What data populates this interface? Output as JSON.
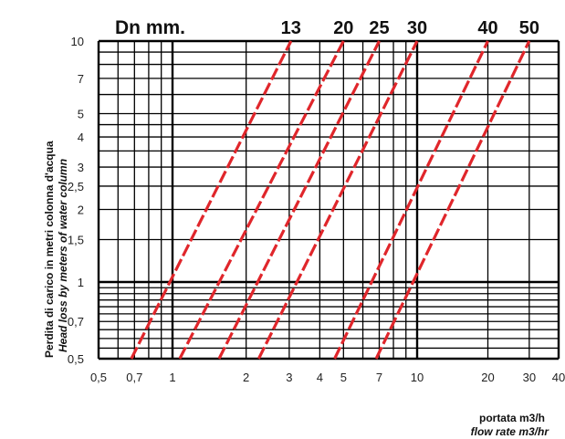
{
  "chart_data": {
    "type": "line",
    "x_scale": "log",
    "y_scale": "log",
    "xlim": [
      0.5,
      40
    ],
    "ylim": [
      0.5,
      10
    ],
    "grid": true,
    "x_ticks": [
      "0,5",
      "0,7",
      "1",
      "2",
      "3",
      "4",
      "5",
      "7",
      "10",
      "20",
      "30",
      "40"
    ],
    "x_tick_values": [
      0.5,
      0.7,
      1,
      2,
      3,
      4,
      5,
      7,
      10,
      20,
      30,
      40
    ],
    "x_grid_lines": [
      0.5,
      0.6,
      0.7,
      0.8,
      0.9,
      1,
      2,
      3,
      4,
      5,
      6,
      7,
      8,
      9,
      10,
      20,
      30,
      40
    ],
    "y_ticks": [
      "0,5",
      "0,7",
      "1",
      "1,5",
      "2",
      "2,5",
      "3",
      "4",
      "5",
      "7",
      "10"
    ],
    "y_tick_values": [
      0.5,
      0.7,
      1,
      1.5,
      2,
      2.5,
      3,
      4,
      5,
      7,
      10
    ],
    "y_grid_lines": [
      0.5,
      0.55,
      0.6,
      0.65,
      0.7,
      0.75,
      0.8,
      0.85,
      0.9,
      0.95,
      1,
      1.5,
      2,
      2.5,
      3,
      3.5,
      4,
      4.5,
      5,
      6,
      7,
      8,
      9,
      10
    ],
    "ylabel_line1": "Perdita di carico in metri colonna d'acqua",
    "ylabel_line2": "Head loss by meters of water column",
    "xlabel_line1": "portata m3/h",
    "xlabel_line2": "flow rate m3/hr",
    "series_title": "Dn mm.",
    "series": [
      {
        "name": "13",
        "color": "#e0262b",
        "points": [
          [
            0.68,
            0.5
          ],
          [
            3.05,
            10
          ]
        ]
      },
      {
        "name": "20",
        "color": "#e0262b",
        "points": [
          [
            1.07,
            0.5
          ],
          [
            5.0,
            10
          ]
        ]
      },
      {
        "name": "25",
        "color": "#e0262b",
        "points": [
          [
            1.55,
            0.5
          ],
          [
            7.0,
            10
          ]
        ]
      },
      {
        "name": "30",
        "color": "#e0262b",
        "points": [
          [
            2.25,
            0.5
          ],
          [
            10.0,
            10
          ]
        ]
      },
      {
        "name": "40",
        "color": "#e0262b",
        "points": [
          [
            4.6,
            0.5
          ],
          [
            20.0,
            10
          ]
        ]
      },
      {
        "name": "50",
        "color": "#e0262b",
        "points": [
          [
            6.8,
            0.5
          ],
          [
            30.0,
            10
          ]
        ]
      }
    ]
  }
}
